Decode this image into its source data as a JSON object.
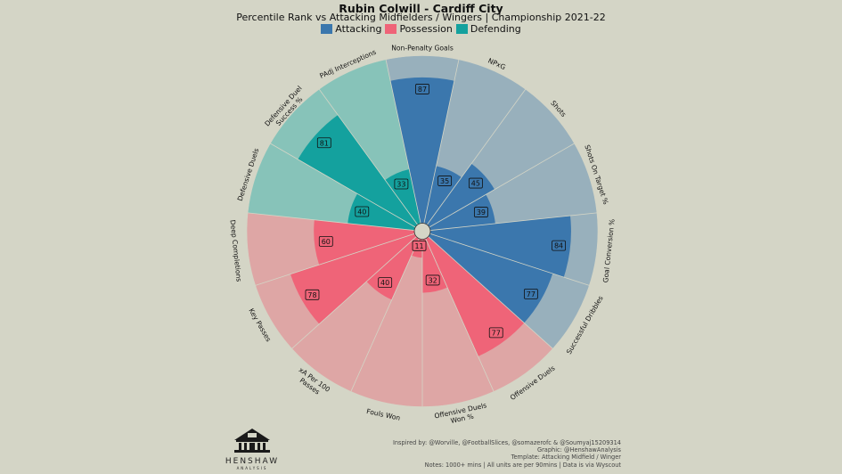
{
  "header": {
    "title": "Rubin Colwill - Cardiff City",
    "subtitle": "Percentile Rank vs Attacking Midfielders / Wingers | Championship 2021-22"
  },
  "legend": [
    {
      "label": "Attacking",
      "color": "#3b77ad"
    },
    {
      "label": "Possession",
      "color": "#ef6478"
    },
    {
      "label": "Defending",
      "color": "#14a19e"
    }
  ],
  "chart_data": {
    "type": "polar-bar",
    "title": "Rubin Colwill - Cardiff City",
    "subtitle": "Percentile Rank vs Attacking Midfielders / Wingers | Championship 2021-22",
    "rlim": [
      0,
      100
    ],
    "groups": {
      "Attacking": {
        "color": "#3b77ad",
        "background": "#98b0bc"
      },
      "Possession": {
        "color": "#ef6478",
        "background": "#dea6a5"
      },
      "Defending": {
        "color": "#14a19e",
        "background": "#87c3b9"
      }
    },
    "categories": [
      "Non-Penalty Goals",
      "NPxG",
      "Shots",
      "Shots On Target %",
      "Goal Conversion %",
      "Successful Dribbles",
      "Offensive Duels",
      "Offensive Duels Won %",
      "Fouls Won",
      "xA Per 100 Passes",
      "Key Passes",
      "Deep Completions",
      "Defensive Duels",
      "Defensive Duel Success %",
      "PAdj Interceptions"
    ],
    "category_groups": [
      "Attacking",
      "Attacking",
      "Attacking",
      "Attacking",
      "Attacking",
      "Attacking",
      "Possession",
      "Possession",
      "Possession",
      "Possession",
      "Possession",
      "Possession",
      "Defending",
      "Defending",
      "Defending"
    ],
    "values": [
      87,
      35,
      45,
      39,
      84,
      77,
      77,
      32,
      11,
      40,
      78,
      60,
      40,
      81,
      33
    ]
  },
  "branding": {
    "logo_name": "HENSHAW",
    "logo_sub": "ANALYSIS"
  },
  "notes": [
    "Inspired by: @Worville, @FootballSlices, @somazerofc & @Soumyaj15209314",
    "Graphic: @HenshawAnalysis",
    "Template: Attacking Midfield / Winger",
    "Notes: 1000+ mins | All units are per 90mins | Data is via Wyscout"
  ]
}
